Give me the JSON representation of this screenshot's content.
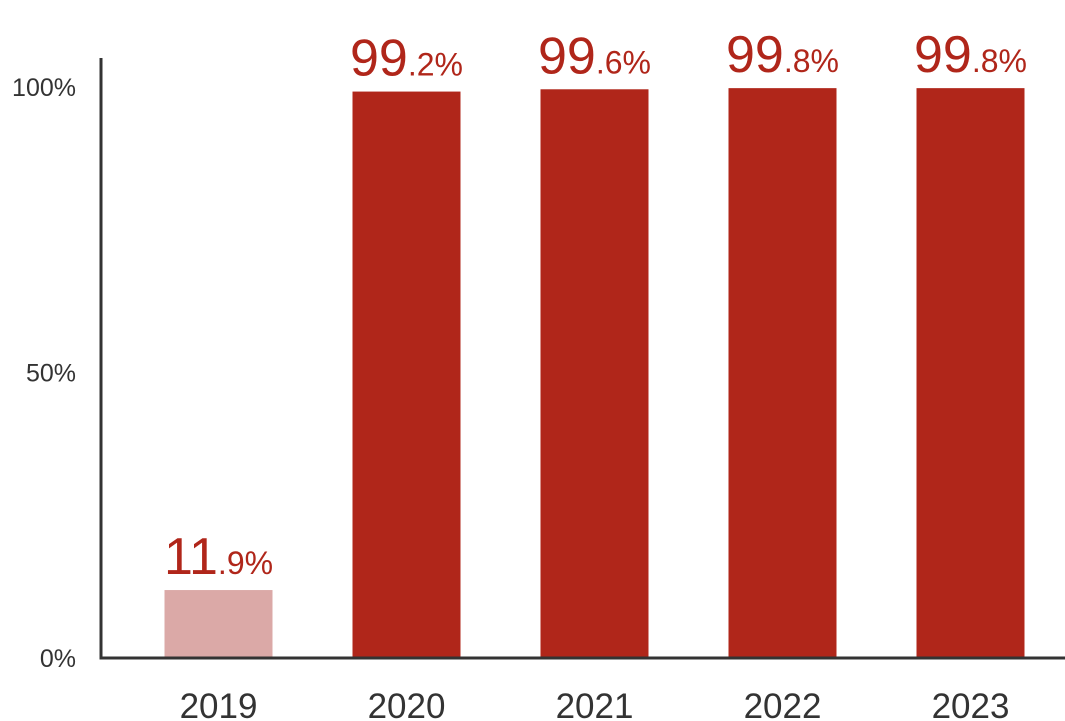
{
  "chart_data": {
    "type": "bar",
    "categories": [
      "2019",
      "2020",
      "2021",
      "2022",
      "2023"
    ],
    "values": [
      11.9,
      99.2,
      99.6,
      99.8,
      99.8
    ],
    "data_labels": [
      {
        "int": "11",
        "dec": ".9%"
      },
      {
        "int": "99",
        "dec": ".2%"
      },
      {
        "int": "99",
        "dec": ".6%"
      },
      {
        "int": "99",
        "dec": ".8%"
      },
      {
        "int": "99",
        "dec": ".8%"
      }
    ],
    "yticks": [
      {
        "value": 0,
        "label": "0%"
      },
      {
        "value": 50,
        "label": "50%"
      },
      {
        "value": 100,
        "label": "100%"
      }
    ],
    "ylim": [
      0,
      105
    ],
    "title": "",
    "xlabel": "",
    "ylabel": "",
    "grid": false,
    "colors": {
      "highlight": "#B0261A",
      "muted": "#DBA9A7",
      "axis": "#333333",
      "label": "#B0261A"
    },
    "muted_categories": [
      "2019"
    ]
  }
}
